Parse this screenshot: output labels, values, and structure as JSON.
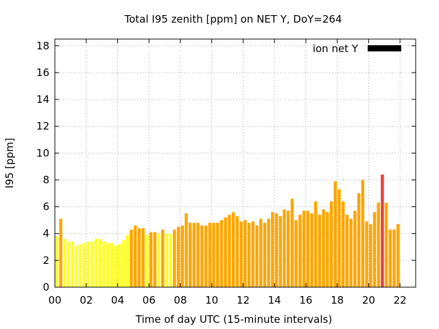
{
  "chart_data": {
    "type": "bar",
    "title": "Total I95 zenith [ppm] on NET Y, DoY=264",
    "xlabel": "Time of day UTC (15-minute intervals)",
    "ylabel": "I95 [ppm]",
    "xlim": [
      0,
      23
    ],
    "ylim": [
      0,
      18.5
    ],
    "xticks": [
      "00",
      "02",
      "04",
      "06",
      "08",
      "10",
      "12",
      "14",
      "16",
      "18",
      "20",
      "22"
    ],
    "yticks": [
      "0",
      "2",
      "4",
      "6",
      "8",
      "10",
      "12",
      "14",
      "16",
      "18"
    ],
    "legend": {
      "label": "ion net Y",
      "placement": "top-right"
    },
    "grid": true,
    "bin_hours": 0.25,
    "color_scale": [
      {
        "max": 4.0,
        "color": "#ffff22"
      },
      {
        "max": 8.0,
        "color": "#ffa500"
      },
      {
        "max": 99,
        "color": "#e8403a"
      }
    ],
    "legend_color": "#000000",
    "values": [
      3.8,
      5.1,
      3.6,
      3.4,
      3.4,
      3.1,
      3.2,
      3.3,
      3.4,
      3.4,
      3.6,
      3.6,
      3.4,
      3.3,
      3.3,
      3.1,
      3.2,
      3.5,
      3.9,
      4.3,
      4.6,
      4.4,
      4.4,
      3.9,
      4.1,
      4.1,
      4.0,
      4.3,
      4.0,
      4.0,
      4.3,
      4.5,
      4.6,
      5.5,
      4.8,
      4.8,
      4.8,
      4.6,
      4.6,
      4.8,
      4.8,
      4.8,
      5.0,
      5.2,
      5.4,
      5.6,
      5.3,
      4.9,
      5.0,
      4.8,
      4.9,
      4.6,
      5.1,
      4.8,
      5.1,
      5.6,
      5.5,
      5.3,
      5.8,
      5.7,
      6.6,
      5.0,
      5.4,
      5.7,
      5.7,
      5.5,
      6.4,
      5.4,
      5.8,
      5.6,
      6.4,
      7.9,
      7.3,
      6.4,
      5.4,
      5.1,
      5.7,
      7.0,
      8.0,
      4.9,
      4.7,
      5.6,
      6.3,
      8.4,
      6.3,
      4.3,
      4.3,
      4.7
    ]
  }
}
